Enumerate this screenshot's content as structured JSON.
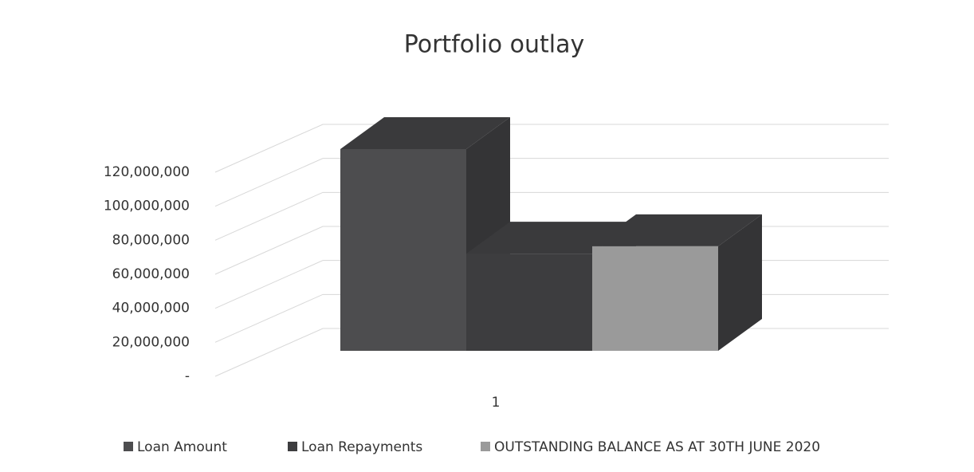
{
  "chart_data": {
    "type": "bar3d",
    "title": "Portfolio outlay",
    "categories": [
      "1"
    ],
    "series": [
      {
        "name": "Loan Amount",
        "color": "#4d4d4f",
        "values": [
          110000000
        ]
      },
      {
        "name": "Loan Repayments",
        "color": "#3d3d3f",
        "values": [
          53000000
        ]
      },
      {
        "name": "OUTSTANDING BALANCE AS AT 30TH JUNE 2020",
        "color": "#9a9a9a",
        "values": [
          57000000
        ]
      }
    ],
    "ylim": [
      0,
      120000000
    ],
    "yticks": [
      {
        "value": 0,
        "label": "-"
      },
      {
        "value": 20000000,
        "label": "20,000,000"
      },
      {
        "value": 40000000,
        "label": "40,000,000"
      },
      {
        "value": 60000000,
        "label": "60,000,000"
      },
      {
        "value": 80000000,
        "label": "80,000,000"
      },
      {
        "value": 100000000,
        "label": "100,000,000"
      },
      {
        "value": 120000000,
        "label": "120,000,000"
      }
    ],
    "grid": true,
    "legend": "bottom"
  }
}
